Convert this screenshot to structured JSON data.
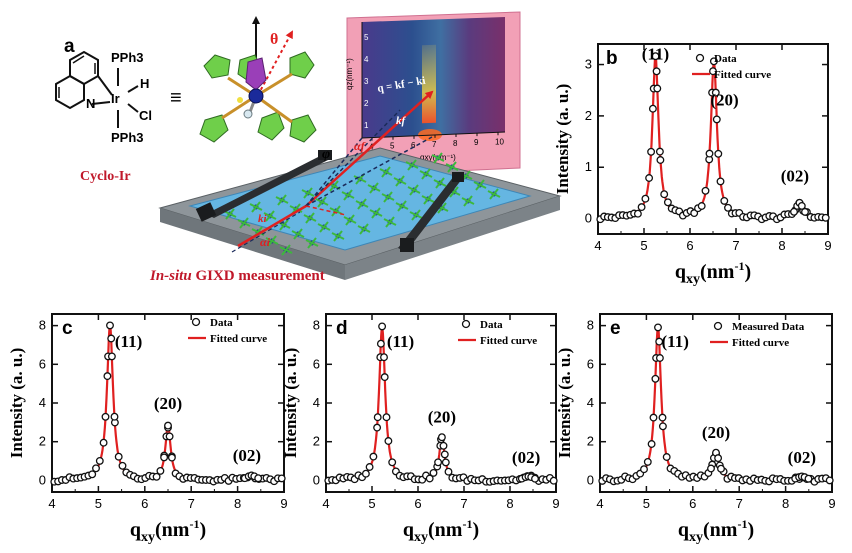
{
  "panel_a": {
    "letter": "a",
    "molecule": {
      "ligand_top": "PPh3",
      "ligand_bottom": "PPh3",
      "hydride": "H",
      "metal": "Ir",
      "chloride": "Cl",
      "nitrogen": "N",
      "equiv_sign": "≡",
      "compound_name": "Cyclo-Ir"
    },
    "theta_label": "θ",
    "phi_label": "φ",
    "alpha_f_label": "αf",
    "alpha_i_label": "αi",
    "ki_label": "ki",
    "kf_label": "kf",
    "q_equation": "q = kf − ki",
    "detector": {
      "x_label": "qxy(nm⁻¹)",
      "y_label": "qz(nm⁻¹)",
      "x_ticks": [
        "4",
        "5",
        "6",
        "7",
        "8",
        "9",
        "10"
      ],
      "y_ticks": [
        "1",
        "2",
        "3",
        "4",
        "5"
      ]
    },
    "caption_italic": "In-situ",
    "caption_rest": " GIXD measurement"
  },
  "chart_data": [
    {
      "panel": "b",
      "type": "line",
      "xlabel": "qxy(nm⁻¹)",
      "ylabel": "Intensity (a. u.)",
      "xlim": [
        4,
        9
      ],
      "ylim": [
        -0.3,
        3.4
      ],
      "x_ticks": [
        4,
        5,
        6,
        7,
        8,
        9
      ],
      "y_ticks": [
        0,
        1,
        2,
        3
      ],
      "legend_placement": "top-right",
      "legend": {
        "data": "Data",
        "fit": "Fitted curve"
      },
      "peaks": [
        {
          "label": "(11)",
          "x": 5.25,
          "height": 3.15,
          "width": 0.08
        },
        {
          "label": "(20)",
          "x": 6.52,
          "height": 3.05,
          "width": 0.08
        },
        {
          "label": "(02)",
          "x": 8.38,
          "height": 0.3,
          "width": 0.1
        }
      ],
      "peak_labels_xy": [
        [
          5.25,
          3.1
        ],
        [
          6.75,
          2.2
        ],
        [
          8.28,
          0.72
        ]
      ]
    },
    {
      "panel": "c",
      "type": "line",
      "xlabel": "qxy(nm⁻¹)",
      "ylabel": "Intensity (a. u.)",
      "xlim": [
        4,
        9
      ],
      "ylim": [
        -0.6,
        8.6
      ],
      "x_ticks": [
        4,
        5,
        6,
        7,
        8,
        9
      ],
      "y_ticks": [
        0,
        2,
        4,
        6,
        8
      ],
      "legend_placement": "top-right",
      "legend": {
        "data": "Data",
        "fit": "Fitted curve"
      },
      "peaks": [
        {
          "label": "(11)",
          "x": 5.25,
          "height": 8.0,
          "width": 0.08
        },
        {
          "label": "(20)",
          "x": 6.5,
          "height": 2.8,
          "width": 0.07
        },
        {
          "label": "(02)",
          "x": 8.3,
          "height": 0.25,
          "width": 0.12
        }
      ],
      "peak_labels_xy": [
        [
          5.65,
          6.9
        ],
        [
          6.5,
          3.7
        ],
        [
          8.2,
          1.0
        ]
      ]
    },
    {
      "panel": "d",
      "type": "line",
      "xlabel": "qxy(nm⁻¹)",
      "ylabel": "Intensity (a. u.)",
      "xlim": [
        4,
        9
      ],
      "ylim": [
        -0.6,
        8.6
      ],
      "x_ticks": [
        4,
        5,
        6,
        7,
        8,
        9
      ],
      "y_ticks": [
        0,
        2,
        4,
        6,
        8
      ],
      "legend_placement": "top-right",
      "legend": {
        "data": "Data",
        "fit": "Fitted curve"
      },
      "peaks": [
        {
          "label": "(11)",
          "x": 5.22,
          "height": 7.95,
          "width": 0.08
        },
        {
          "label": "(20)",
          "x": 6.52,
          "height": 2.2,
          "width": 0.07
        },
        {
          "label": "(02)",
          "x": 8.4,
          "height": 0.2,
          "width": 0.12
        }
      ],
      "peak_labels_xy": [
        [
          5.62,
          6.9
        ],
        [
          6.52,
          3.0
        ],
        [
          8.35,
          0.9
        ]
      ]
    },
    {
      "panel": "e",
      "type": "line",
      "xlabel": "qxy(nm⁻¹)",
      "ylabel": "Intensity (a. u.)",
      "xlim": [
        4,
        9
      ],
      "ylim": [
        -0.6,
        8.6
      ],
      "x_ticks": [
        4,
        5,
        6,
        7,
        8,
        9
      ],
      "y_ticks": [
        0,
        2,
        4,
        6,
        8
      ],
      "legend_placement": "top-right",
      "legend": {
        "data": "Measured Data",
        "fit": "Fitted curve"
      },
      "peaks": [
        {
          "label": "(11)",
          "x": 5.25,
          "height": 7.9,
          "width": 0.08
        },
        {
          "label": "(20)",
          "x": 6.5,
          "height": 1.4,
          "width": 0.09
        },
        {
          "label": "(02)",
          "x": 8.35,
          "height": 0.2,
          "width": 0.12
        }
      ],
      "peak_labels_xy": [
        [
          5.62,
          6.9
        ],
        [
          6.5,
          2.2
        ],
        [
          8.35,
          0.9
        ]
      ]
    }
  ],
  "colors": {
    "fit_line": "#e02020",
    "data_marker": "#111111",
    "red_text": "#c0182a",
    "pink_detector": "#f2a0b6",
    "tray_water": "#63b8e6",
    "tray_frame": "#9aa0a5"
  }
}
